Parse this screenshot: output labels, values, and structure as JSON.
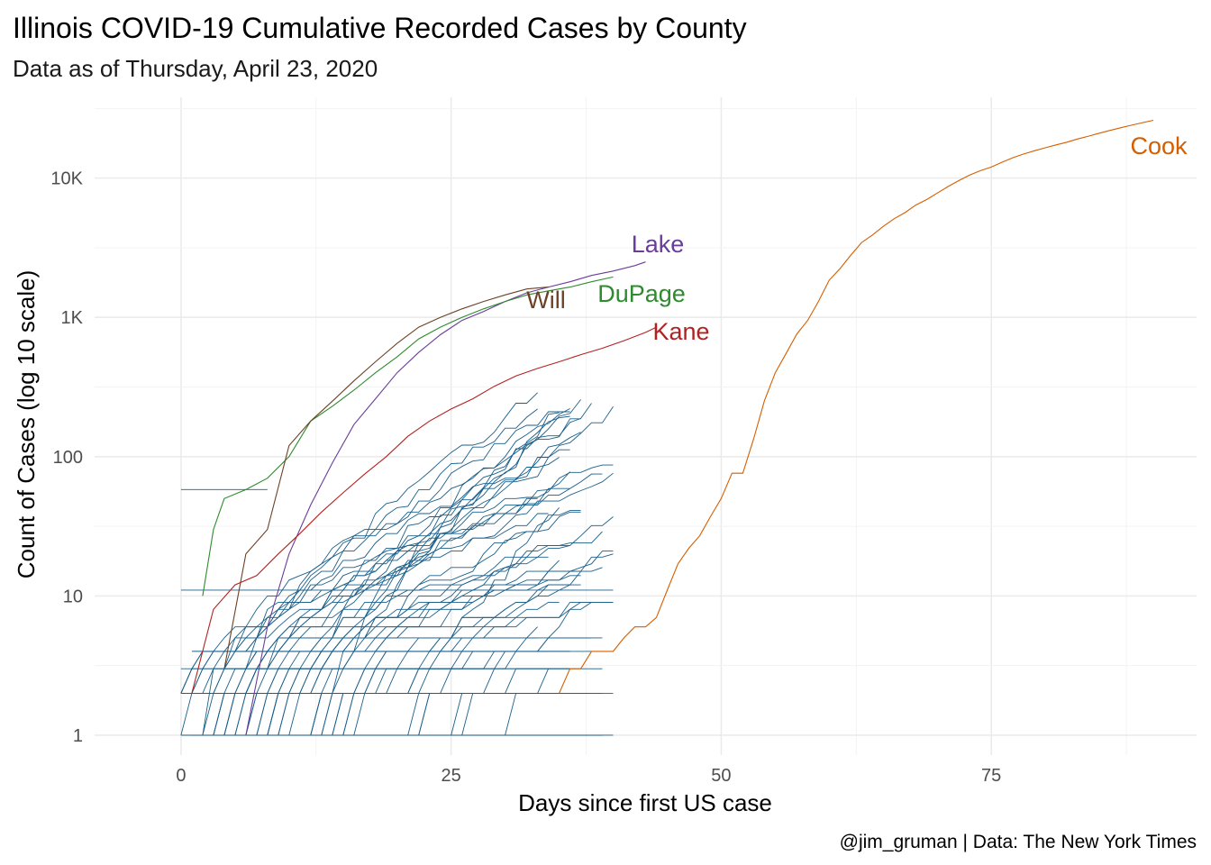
{
  "chart_data": {
    "type": "line",
    "title": "Illinois COVID-19 Cumulative Recorded Cases by County",
    "subtitle": "Data as of Thursday, April 23, 2020",
    "xlabel": "Days since first US case",
    "ylabel": "Count of Cases (log 10 scale)",
    "caption": "@jim_gruman | Data: The New York Times",
    "y_scale": "log10",
    "xlim": [
      -8,
      94
    ],
    "ylim": [
      0.72,
      38000
    ],
    "x_ticks": [
      0,
      25,
      50,
      75
    ],
    "x_tick_labels": [
      "0",
      "25",
      "50",
      "75"
    ],
    "y_ticks": [
      1,
      10,
      100,
      1000,
      10000
    ],
    "y_tick_labels": [
      "1",
      "10",
      "100",
      "1K",
      "10K"
    ],
    "grid": true,
    "legend": "none",
    "highlighted_series": [
      {
        "name": "Cook",
        "color": "#d55e00",
        "x": [
          35,
          36,
          37,
          38,
          39,
          40,
          41,
          42,
          43,
          44,
          45,
          46,
          47,
          48,
          49,
          50,
          51,
          52,
          53,
          54,
          55,
          56,
          57,
          58,
          59,
          60,
          61,
          62,
          63,
          64,
          65,
          66,
          67,
          68,
          69,
          70,
          71,
          72,
          73,
          74,
          75,
          76,
          77,
          78,
          79,
          80,
          81,
          82,
          83,
          84,
          85,
          86,
          87,
          88,
          89,
          90
        ],
        "y": [
          2,
          3,
          3,
          4,
          4,
          4,
          5,
          6,
          6,
          7,
          11,
          17,
          22,
          27,
          37,
          50,
          76,
          76,
          134,
          252,
          400,
          550,
          760,
          950,
          1300,
          1850,
          2240,
          2800,
          3450,
          3900,
          4500,
          5100,
          5650,
          6400,
          7000,
          7800,
          8700,
          9600,
          10500,
          11300,
          12000,
          13000,
          14000,
          14900,
          15700,
          16500,
          17300,
          18100,
          19100,
          20000,
          21000,
          22000,
          23000,
          24000,
          25000,
          26000
        ]
      },
      {
        "name": "Lake",
        "color": "#6a3d9a",
        "x": [
          6,
          8,
          10,
          12,
          14,
          16,
          18,
          20,
          22,
          24,
          26,
          28,
          30,
          32,
          34,
          36,
          38,
          40,
          42,
          43
        ],
        "y": [
          1,
          6,
          20,
          45,
          90,
          170,
          260,
          400,
          560,
          750,
          950,
          1100,
          1300,
          1500,
          1650,
          1800,
          2000,
          2150,
          2350,
          2500
        ]
      },
      {
        "name": "DuPage",
        "color": "#2e8b2e",
        "x": [
          2,
          3,
          4,
          6,
          8,
          10,
          12,
          14,
          16,
          18,
          20,
          22,
          24,
          26,
          28,
          30,
          32,
          34,
          36,
          38,
          40
        ],
        "y": [
          10,
          30,
          50,
          58,
          70,
          100,
          180,
          230,
          300,
          400,
          520,
          700,
          850,
          1000,
          1150,
          1300,
          1450,
          1550,
          1650,
          1800,
          1950
        ]
      },
      {
        "name": "Will",
        "color": "#6b4226",
        "x": [
          4,
          6,
          8,
          10,
          12,
          14,
          16,
          18,
          20,
          22,
          24,
          26,
          28,
          30,
          32,
          34
        ],
        "y": [
          3,
          20,
          30,
          120,
          180,
          250,
          350,
          480,
          650,
          850,
          1000,
          1150,
          1300,
          1450,
          1600,
          1650
        ]
      },
      {
        "name": "Kane",
        "color": "#b22222",
        "x": [
          1,
          3,
          5,
          7,
          9,
          11,
          13,
          15,
          17,
          19,
          21,
          23,
          25,
          27,
          29,
          31,
          33,
          35,
          37,
          39,
          41,
          43,
          44
        ],
        "y": [
          2,
          8,
          12,
          14,
          20,
          28,
          40,
          55,
          75,
          100,
          140,
          180,
          220,
          260,
          320,
          380,
          430,
          480,
          540,
          600,
          680,
          780,
          850
        ]
      }
    ],
    "other_series": {
      "color": "#1a5f8a",
      "count": 60
    }
  }
}
